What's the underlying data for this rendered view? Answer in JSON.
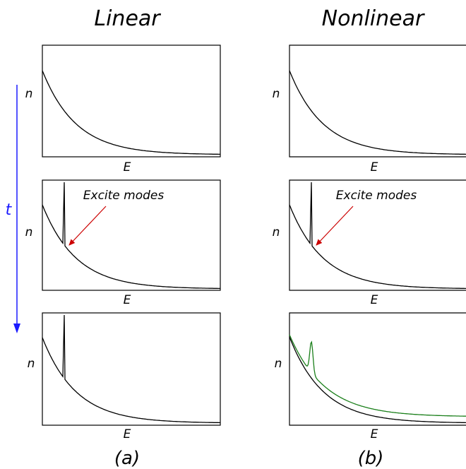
{
  "columns": [
    {
      "title": "Linear",
      "panel_label": "(a)",
      "panels": [
        {
          "ylabel": "n",
          "xlabel": "E"
        },
        {
          "ylabel": "n",
          "xlabel": "E",
          "annotation": "Excite modes"
        },
        {
          "ylabel": "n",
          "xlabel": "E"
        }
      ]
    },
    {
      "title": "Nonlinear",
      "panel_label": "(b)",
      "panels": [
        {
          "ylabel": "n",
          "xlabel": "E"
        },
        {
          "ylabel": "n",
          "xlabel": "E",
          "annotation": "Excite modes"
        },
        {
          "ylabel": "n",
          "xlabel": "E"
        }
      ]
    }
  ],
  "time_axis": {
    "label": "t"
  },
  "colors": {
    "curve": "#000000",
    "evolved_curve": "#1a7f1a",
    "annotation_arrow": "#cc0000",
    "time_arrow": "#1a1aff"
  }
}
